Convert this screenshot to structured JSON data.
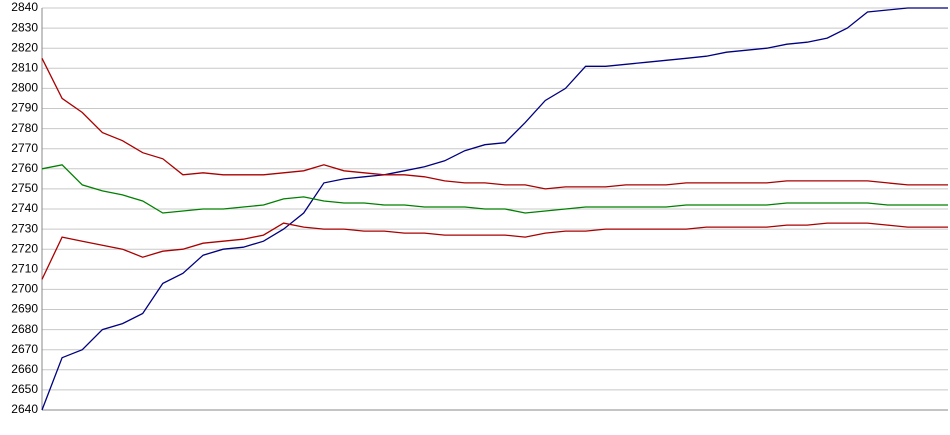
{
  "chart_data": {
    "type": "line",
    "categories": [
      null,
      null,
      null,
      null,
      null,
      null,
      null,
      null,
      null,
      null,
      null,
      null,
      null,
      null,
      null,
      null,
      null,
      null,
      null,
      null,
      null,
      null,
      null,
      null,
      null,
      null,
      null,
      null,
      null,
      null,
      null,
      null,
      null,
      null,
      null,
      null,
      null,
      null,
      null,
      null,
      null,
      null,
      null,
      null,
      null,
      null
    ],
    "series": [
      {
        "color": "#000080",
        "values": [
          2640,
          2666,
          2670,
          2680,
          2683,
          2688,
          2703,
          2708,
          2717,
          2720,
          2721,
          2724,
          2730,
          2738,
          2753,
          2755,
          2756,
          2757,
          2759,
          2761,
          2764,
          2769,
          2772,
          2773,
          2783,
          2794,
          2800,
          2811,
          2811,
          2812,
          2813,
          2814,
          2815,
          2816,
          2818,
          2819,
          2820,
          2822,
          2823,
          2825,
          2830,
          2838,
          2839,
          2840,
          2840,
          2840
        ]
      },
      {
        "color": "#aa0000",
        "values": [
          2815,
          2795,
          2788,
          2778,
          2774,
          2768,
          2765,
          2757,
          2758,
          2757,
          2757,
          2757,
          2758,
          2759,
          2762,
          2759,
          2758,
          2757,
          2757,
          2756,
          2754,
          2753,
          2753,
          2752,
          2752,
          2750,
          2751,
          2751,
          2751,
          2752,
          2752,
          2752,
          2753,
          2753,
          2753,
          2753,
          2753,
          2754,
          2754,
          2754,
          2754,
          2754,
          2753,
          2752,
          2752,
          2752
        ]
      },
      {
        "color": "#008000",
        "values": [
          2760,
          2762,
          2752,
          2749,
          2747,
          2744,
          2738,
          2739,
          2740,
          2740,
          2741,
          2742,
          2745,
          2746,
          2744,
          2743,
          2743,
          2742,
          2742,
          2741,
          2741,
          2741,
          2740,
          2740,
          2738,
          2739,
          2740,
          2741,
          2741,
          2741,
          2741,
          2741,
          2742,
          2742,
          2742,
          2742,
          2742,
          2743,
          2743,
          2743,
          2743,
          2743,
          2742,
          2742,
          2742,
          2742
        ]
      },
      {
        "color": "#aa0000",
        "values": [
          2705,
          2726,
          2724,
          2722,
          2720,
          2716,
          2719,
          2720,
          2723,
          2724,
          2725,
          2727,
          2733,
          2731,
          2730,
          2730,
          2729,
          2729,
          2728,
          2728,
          2727,
          2727,
          2727,
          2727,
          2726,
          2728,
          2729,
          2729,
          2730,
          2730,
          2730,
          2730,
          2730,
          2731,
          2731,
          2731,
          2731,
          2732,
          2732,
          2733,
          2733,
          2733,
          2732,
          2731,
          2731,
          2731
        ]
      }
    ],
    "ylim": [
      2640,
      2840
    ],
    "yticks": [
      2640,
      2650,
      2660,
      2670,
      2680,
      2690,
      2700,
      2710,
      2720,
      2730,
      2740,
      2750,
      2760,
      2770,
      2780,
      2790,
      2800,
      2810,
      2820,
      2830,
      2840
    ],
    "grid": true
  }
}
